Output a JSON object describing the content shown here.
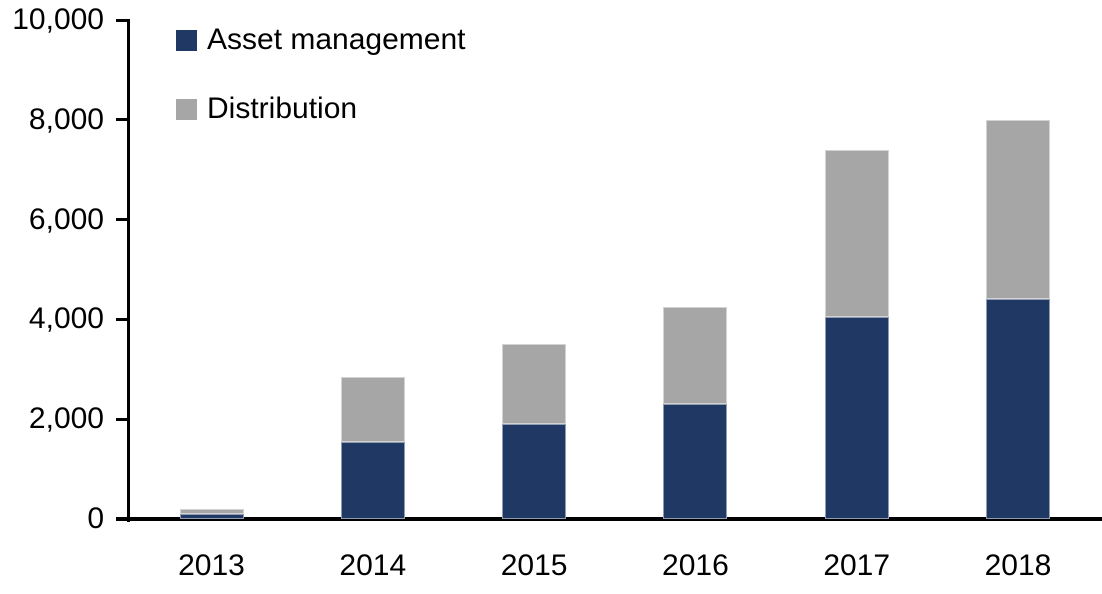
{
  "chart_data": {
    "type": "bar",
    "stacked": true,
    "title": "",
    "xlabel": "",
    "ylabel": "",
    "categories": [
      "2013",
      "2014",
      "2015",
      "2016",
      "2017",
      "2018"
    ],
    "series": [
      {
        "name": "Asset management",
        "color": "#1F3864",
        "values": [
          100,
          1550,
          1900,
          2300,
          4050,
          4400
        ]
      },
      {
        "name": "Distribution",
        "color": "#A6A6A6",
        "values": [
          100,
          1300,
          1600,
          1950,
          3350,
          3600
        ]
      }
    ],
    "stack_totals": [
      200,
      2850,
      3500,
      4250,
      7400,
      8000
    ],
    "ylim": [
      0,
      10000
    ],
    "y_tick_interval": 2000,
    "y_tick_labels": [
      "0",
      "2,000",
      "4,000",
      "6,000",
      "8,000",
      "10,000"
    ],
    "grid": "off",
    "legend_position": "inside-top-left",
    "axis_color": "#000000",
    "background_color": "#FFFFFF"
  }
}
